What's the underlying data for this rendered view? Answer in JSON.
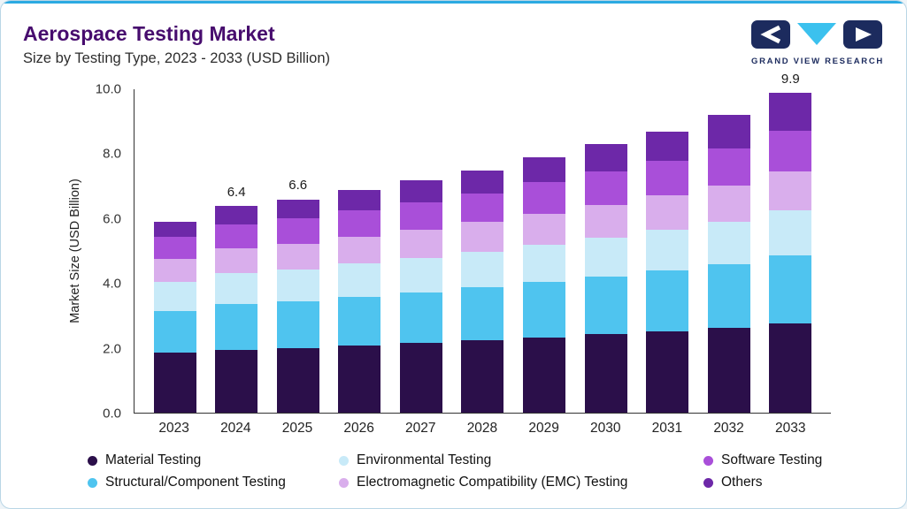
{
  "header": {
    "title": "Aerospace Testing Market",
    "subtitle": "Size by Testing Type, 2023 - 2033 (USD Billion)",
    "brand_name": "GRAND VIEW RESEARCH"
  },
  "colors": {
    "top_accent": "#2baae2",
    "card_border": "#b9d6e6",
    "title": "#470c6e",
    "brand_navy": "#1c2b5e",
    "brand_cyan": "#3bc1ee",
    "axis": "#333333"
  },
  "chart_data": {
    "type": "bar",
    "stacked": true,
    "title": "Aerospace Testing Market",
    "subtitle": "Size by Testing Type, 2023 - 2033 (USD Billion)",
    "xlabel": "",
    "ylabel": "Market Size (USD Billion)",
    "ylim": [
      0,
      10
    ],
    "ytick_labels": [
      "10.0",
      "8.0",
      "6.0",
      "4.0",
      "2.0",
      "0.0"
    ],
    "grid": false,
    "legend_position": "bottom",
    "categories": [
      "2023",
      "2024",
      "2025",
      "2026",
      "2027",
      "2028",
      "2029",
      "2030",
      "2031",
      "2032",
      "2033"
    ],
    "series": [
      {
        "name": "Material Testing",
        "color": "#2b0f4a",
        "values": [
          1.85,
          1.95,
          2.0,
          2.08,
          2.15,
          2.25,
          2.33,
          2.42,
          2.52,
          2.62,
          2.75
        ]
      },
      {
        "name": "Structural/Component Testing",
        "color": "#4fc4ef",
        "values": [
          1.3,
          1.4,
          1.45,
          1.5,
          1.57,
          1.63,
          1.72,
          1.8,
          1.88,
          1.98,
          2.12
        ]
      },
      {
        "name": "Environmental Testing",
        "color": "#c8eaf8",
        "values": [
          0.9,
          0.96,
          0.99,
          1.03,
          1.07,
          1.1,
          1.15,
          1.2,
          1.25,
          1.31,
          1.4
        ]
      },
      {
        "name": "Electromagnetic Compatibility (EMC) Testing",
        "color": "#d9aeec",
        "values": [
          0.7,
          0.76,
          0.79,
          0.83,
          0.87,
          0.91,
          0.96,
          1.01,
          1.06,
          1.12,
          1.2
        ]
      },
      {
        "name": "Software Testing",
        "color": "#a94fd9",
        "values": [
          0.68,
          0.74,
          0.77,
          0.81,
          0.85,
          0.9,
          0.96,
          1.02,
          1.08,
          1.15,
          1.25
        ]
      },
      {
        "name": "Others",
        "color": "#6d28a8",
        "values": [
          0.47,
          0.59,
          0.6,
          0.65,
          0.69,
          0.71,
          0.78,
          0.85,
          0.91,
          1.02,
          1.18
        ]
      }
    ],
    "totals_labeled": {
      "2024": "6.4",
      "2025": "6.6",
      "2033": "9.9"
    },
    "legend_order": [
      "Material Testing",
      "Environmental Testing",
      "Software Testing",
      "Structural/Component Testing",
      "Electromagnetic Compatibility (EMC) Testing",
      "Others"
    ]
  }
}
